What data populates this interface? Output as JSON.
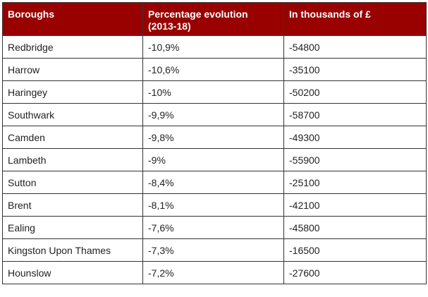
{
  "table": {
    "headers": [
      "Boroughs",
      "Percentage evolution (2013-18)",
      "In thousands of £"
    ],
    "rows": [
      [
        "Redbridge",
        "-10,9%",
        "-54800"
      ],
      [
        "Harrow",
        "-10,6%",
        "-35100"
      ],
      [
        "Haringey",
        "-10%",
        "-50200"
      ],
      [
        "Southwark",
        "-9,9%",
        "-58700"
      ],
      [
        "Camden",
        "-9,8%",
        "-49300"
      ],
      [
        "Lambeth",
        "-9%",
        "-55900"
      ],
      [
        "Sutton",
        "-8,4%",
        "-25100"
      ],
      [
        "Brent",
        "-8,1%",
        "-42100"
      ],
      [
        "Ealing",
        "-7,6%",
        "-45800"
      ],
      [
        "Kingston Upon Thames",
        "-7,3%",
        "-16500"
      ],
      [
        "Hounslow",
        "-7,2%",
        "-27600"
      ]
    ]
  },
  "colors": {
    "header_background": "#990000",
    "header_text": "#ffffff",
    "border": "#333333",
    "cell_text": "#222222"
  }
}
